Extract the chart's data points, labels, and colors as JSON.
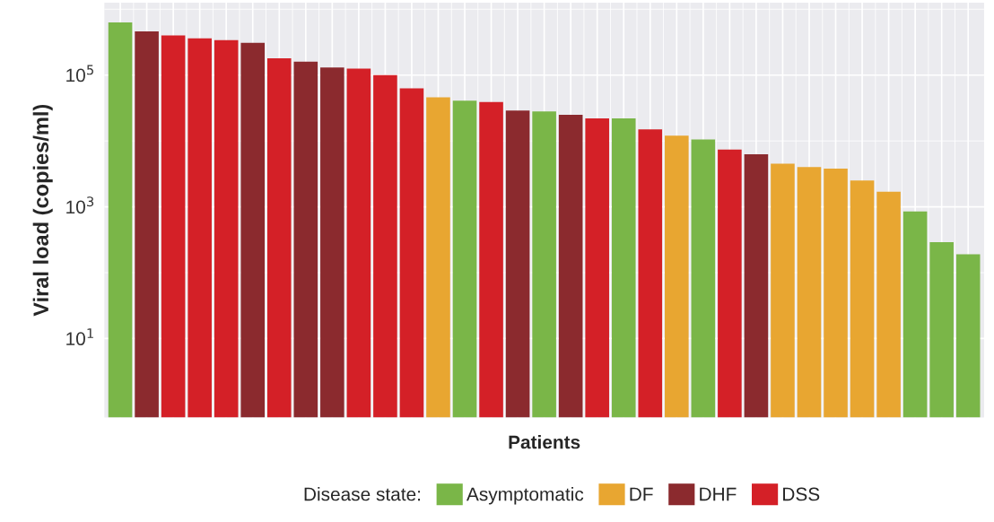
{
  "chart_data": {
    "type": "bar",
    "xlabel": "Patients",
    "ylabel": "Viral load (copies/ml)",
    "legend_title": "Disease state:",
    "categories": [
      null,
      null,
      null,
      null,
      null,
      null,
      null,
      null,
      null,
      null,
      null,
      null,
      null,
      null,
      null,
      null,
      null,
      null,
      null,
      null,
      null,
      null,
      null,
      null,
      null,
      null,
      null,
      null,
      null,
      null,
      null,
      null,
      null
    ],
    "series": [
      {
        "name": "Asymptomatic",
        "color": "#7ab648",
        "values": [
          630000,
          null,
          null,
          null,
          null,
          null,
          null,
          null,
          null,
          null,
          null,
          null,
          null,
          41000,
          null,
          null,
          28000,
          null,
          null,
          22000,
          null,
          null,
          10500,
          null,
          null,
          null,
          null,
          null,
          null,
          null,
          850,
          290,
          190
        ]
      },
      {
        "name": "DF",
        "color": "#e8a631",
        "values": [
          null,
          null,
          null,
          null,
          null,
          null,
          null,
          null,
          null,
          null,
          null,
          null,
          46000,
          null,
          null,
          null,
          null,
          null,
          null,
          null,
          null,
          12000,
          null,
          null,
          null,
          4500,
          4000,
          3800,
          2500,
          1700,
          null,
          null,
          null
        ]
      },
      {
        "name": "DHF",
        "color": "#8b2a2e",
        "values": [
          null,
          460000,
          null,
          null,
          null,
          310000,
          null,
          160000,
          130000,
          null,
          null,
          null,
          null,
          null,
          null,
          29000,
          null,
          25000,
          null,
          null,
          null,
          null,
          null,
          null,
          6300,
          null,
          null,
          null,
          null,
          null,
          null,
          null,
          null
        ]
      },
      {
        "name": "DSS",
        "color": "#d42027",
        "values": [
          null,
          null,
          400000,
          360000,
          340000,
          null,
          180000,
          null,
          null,
          125000,
          100000,
          63000,
          null,
          null,
          39000,
          null,
          null,
          null,
          22000,
          null,
          15000,
          null,
          null,
          7400,
          null,
          null,
          null,
          null,
          null,
          null,
          null,
          null,
          null
        ]
      }
    ],
    "log": true,
    "ylim": [
      0.63,
      1260000
    ],
    "yticks": [
      {
        "value": 10,
        "label": "10$^{1}$"
      },
      {
        "value": 1000,
        "label": "10$^{3}$"
      },
      {
        "value": 100000,
        "label": "10$^{5}$"
      }
    ],
    "grid": true,
    "legend": "bottom",
    "tick_labels": "y"
  }
}
